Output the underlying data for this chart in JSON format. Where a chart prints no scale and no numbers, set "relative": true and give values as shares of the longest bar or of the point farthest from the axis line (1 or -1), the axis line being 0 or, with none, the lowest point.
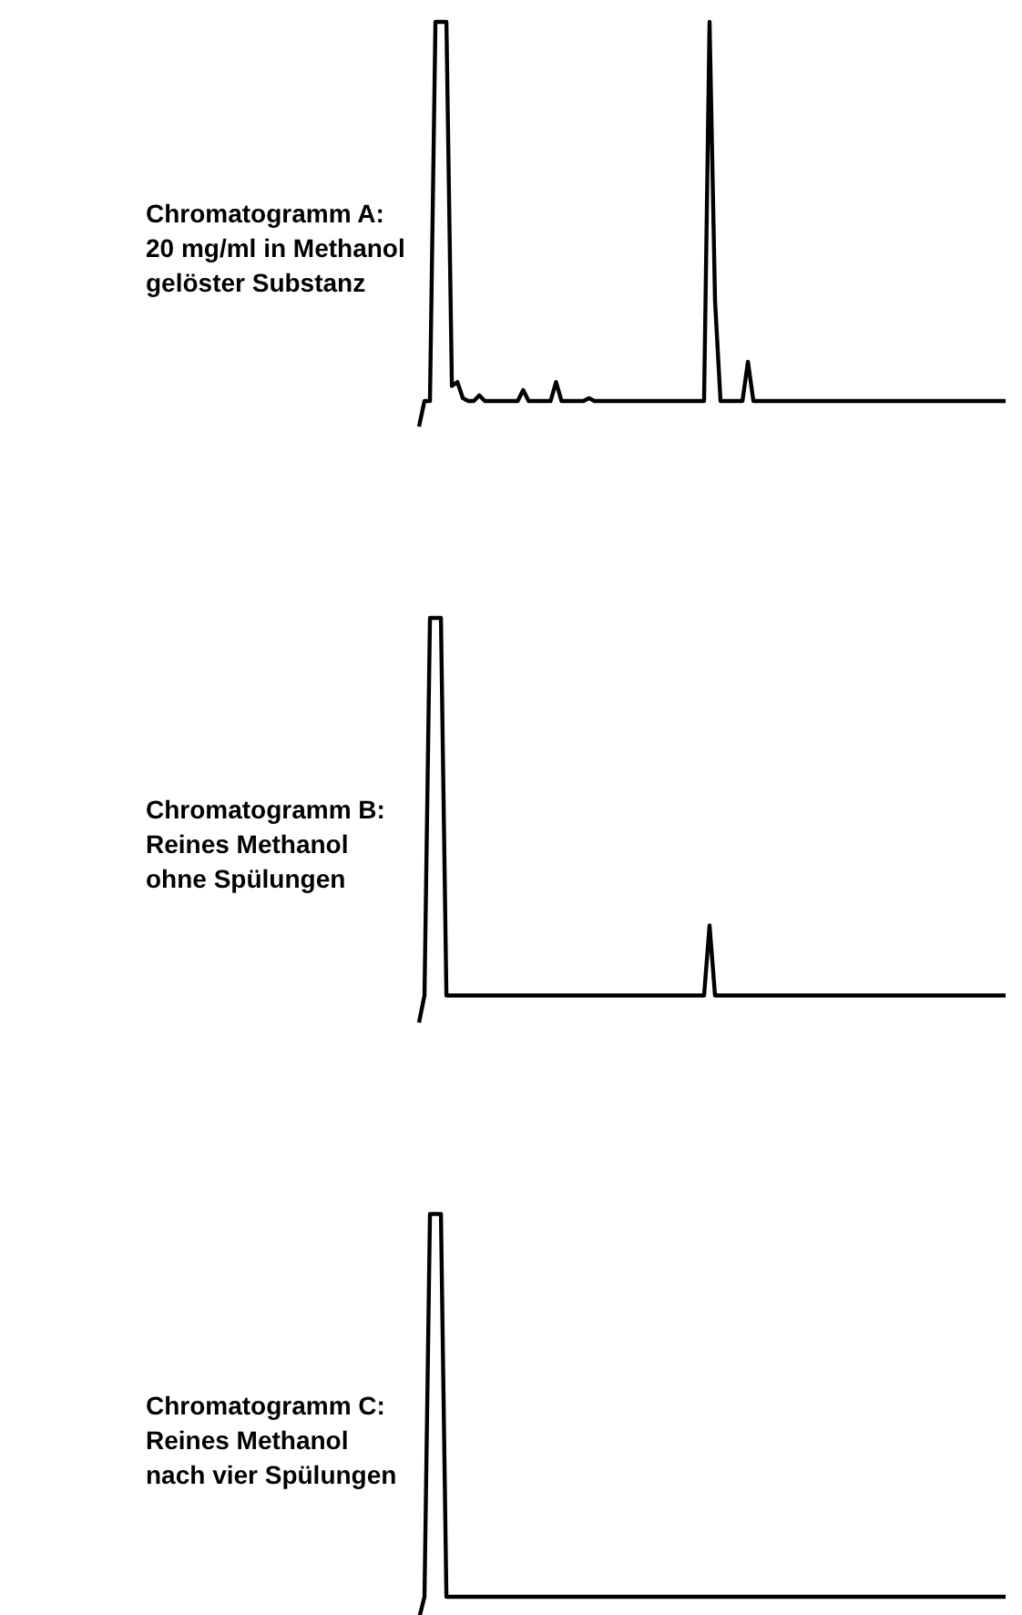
{
  "chart_data": [
    {
      "type": "line",
      "title": "Chromatogramm A:\n20 mg/ml in Methanol\ngelöster Substanz",
      "relative": true,
      "grid": false,
      "legend": false,
      "categories": [
        null,
        null,
        null,
        null,
        null,
        null,
        null,
        null,
        null,
        null,
        null,
        null,
        null,
        null,
        null,
        null,
        null,
        null,
        null,
        null,
        null,
        null,
        null,
        null,
        null,
        null,
        null,
        null,
        null,
        null,
        null,
        null,
        null,
        null,
        null,
        null,
        null,
        null,
        null,
        null,
        null,
        null,
        null,
        null,
        null,
        null,
        null,
        null,
        null,
        null,
        null,
        null,
        null,
        null,
        null,
        null,
        null,
        null,
        null,
        null,
        null,
        null,
        null,
        null,
        null,
        null,
        null,
        null,
        null,
        null,
        null,
        null,
        null,
        null,
        null,
        null,
        null,
        null,
        null,
        null,
        null,
        null,
        null,
        null,
        null,
        null,
        null,
        null,
        null,
        null,
        null,
        null,
        null,
        null,
        null,
        null,
        null,
        null,
        null,
        null,
        null,
        null,
        null,
        null,
        null,
        null,
        null,
        null
      ],
      "series": [
        {
          "color": "#000000",
          "values": [
            0,
            0.063,
            0.063,
            1,
            1,
            1,
            0.1,
            0.11,
            0.07,
            0.063,
            0.063,
            0.077,
            0.063,
            0.063,
            0.063,
            0.063,
            0.063,
            0.063,
            0.063,
            0.09,
            0.063,
            0.063,
            0.063,
            0.063,
            0.063,
            0.11,
            0.063,
            0.063,
            0.063,
            0.063,
            0.063,
            0.07,
            0.063,
            0.063,
            0.063,
            0.063,
            0.063,
            0.063,
            0.063,
            0.063,
            0.063,
            0.063,
            0.063,
            0.063,
            0.063,
            0.063,
            0.063,
            0.063,
            0.063,
            0.063,
            0.063,
            0.063,
            0.063,
            1,
            0.31,
            0.063,
            0.063,
            0.063,
            0.063,
            0.063,
            0.16,
            0.063,
            0.063,
            0.063,
            0.063,
            0.063,
            0.063,
            0.063,
            0.063,
            0.063,
            0.063,
            0.063,
            0.063,
            0.063,
            0.063,
            0.063,
            0.063,
            0.063,
            0.063,
            0.063,
            0.063,
            0.063,
            0.063,
            0.063,
            0.063,
            0.063,
            0.063,
            0.063,
            0.063,
            0.063,
            0.063,
            0.063,
            0.063,
            0.063,
            0.063,
            0.063,
            0.063,
            0.063,
            0.063,
            0.063,
            0.063,
            0.063,
            0.063,
            0.063,
            0.063,
            0.063,
            0.063,
            0.063
          ]
        }
      ]
    },
    {
      "type": "line",
      "title": "Chromatogramm B:\nReines Methanol\nohne Spülungen",
      "relative": true,
      "grid": false,
      "legend": false,
      "categories": [
        null,
        null,
        null,
        null,
        null,
        null,
        null,
        null,
        null,
        null,
        null,
        null,
        null,
        null,
        null,
        null,
        null,
        null,
        null,
        null,
        null,
        null,
        null,
        null,
        null,
        null,
        null,
        null,
        null,
        null,
        null,
        null,
        null,
        null,
        null,
        null,
        null,
        null,
        null,
        null,
        null,
        null,
        null,
        null,
        null,
        null,
        null,
        null,
        null,
        null,
        null,
        null,
        null,
        null,
        null,
        null,
        null,
        null,
        null,
        null,
        null,
        null,
        null,
        null,
        null,
        null,
        null,
        null,
        null,
        null,
        null,
        null,
        null,
        null,
        null,
        null,
        null,
        null,
        null,
        null,
        null,
        null,
        null,
        null,
        null,
        null,
        null,
        null,
        null,
        null,
        null,
        null,
        null,
        null,
        null,
        null,
        null,
        null,
        null,
        null,
        null,
        null,
        null,
        null,
        null,
        null,
        null,
        null
      ],
      "series": [
        {
          "color": "#000000",
          "values": [
            0,
            0.067,
            1,
            1,
            1,
            0.067,
            0.067,
            0.067,
            0.067,
            0.067,
            0.067,
            0.067,
            0.067,
            0.067,
            0.067,
            0.067,
            0.067,
            0.067,
            0.067,
            0.067,
            0.067,
            0.067,
            0.067,
            0.067,
            0.067,
            0.067,
            0.067,
            0.067,
            0.067,
            0.067,
            0.067,
            0.067,
            0.067,
            0.067,
            0.067,
            0.067,
            0.067,
            0.067,
            0.067,
            0.067,
            0.067,
            0.067,
            0.067,
            0.067,
            0.067,
            0.067,
            0.067,
            0.067,
            0.067,
            0.067,
            0.067,
            0.067,
            0.067,
            0.24,
            0.067,
            0.067,
            0.067,
            0.067,
            0.067,
            0.067,
            0.067,
            0.067,
            0.067,
            0.067,
            0.067,
            0.067,
            0.067,
            0.067,
            0.067,
            0.067,
            0.067,
            0.067,
            0.067,
            0.067,
            0.067,
            0.067,
            0.067,
            0.067,
            0.067,
            0.067,
            0.067,
            0.067,
            0.067,
            0.067,
            0.067,
            0.067,
            0.067,
            0.067,
            0.067,
            0.067,
            0.067,
            0.067,
            0.067,
            0.067,
            0.067,
            0.067,
            0.067,
            0.067,
            0.067,
            0.067,
            0.067,
            0.067,
            0.067,
            0.067,
            0.067,
            0.067,
            0.067,
            0.067
          ]
        }
      ]
    },
    {
      "type": "line",
      "title": "Chromatogramm C:\nReines Methanol\nnach vier Spülungen",
      "relative": true,
      "grid": false,
      "legend": false,
      "categories": [
        null,
        null,
        null,
        null,
        null,
        null,
        null,
        null,
        null,
        null,
        null,
        null,
        null,
        null,
        null,
        null,
        null,
        null,
        null,
        null,
        null,
        null,
        null,
        null,
        null,
        null,
        null,
        null,
        null,
        null,
        null,
        null,
        null,
        null,
        null,
        null,
        null,
        null,
        null,
        null,
        null,
        null,
        null,
        null,
        null,
        null,
        null,
        null,
        null,
        null,
        null,
        null,
        null,
        null,
        null,
        null,
        null,
        null,
        null,
        null,
        null,
        null,
        null,
        null,
        null,
        null,
        null,
        null,
        null,
        null,
        null,
        null,
        null,
        null,
        null,
        null,
        null,
        null,
        null,
        null,
        null,
        null,
        null,
        null,
        null,
        null,
        null,
        null,
        null,
        null,
        null,
        null,
        null,
        null,
        null,
        null,
        null,
        null,
        null,
        null,
        null,
        null,
        null,
        null,
        null,
        null,
        null,
        null
      ],
      "series": [
        {
          "color": "#000000",
          "values": [
            0,
            0.054,
            1,
            1,
            1,
            0.054,
            0.054,
            0.054,
            0.054,
            0.054,
            0.054,
            0.054,
            0.054,
            0.054,
            0.054,
            0.054,
            0.054,
            0.054,
            0.054,
            0.054,
            0.054,
            0.054,
            0.054,
            0.054,
            0.054,
            0.054,
            0.054,
            0.054,
            0.054,
            0.054,
            0.054,
            0.054,
            0.054,
            0.054,
            0.054,
            0.054,
            0.054,
            0.054,
            0.054,
            0.054,
            0.054,
            0.054,
            0.054,
            0.054,
            0.054,
            0.054,
            0.054,
            0.054,
            0.054,
            0.054,
            0.054,
            0.054,
            0.054,
            0.054,
            0.054,
            0.054,
            0.054,
            0.054,
            0.054,
            0.054,
            0.054,
            0.054,
            0.054,
            0.054,
            0.054,
            0.054,
            0.054,
            0.054,
            0.054,
            0.054,
            0.054,
            0.054,
            0.054,
            0.054,
            0.054,
            0.054,
            0.054,
            0.054,
            0.054,
            0.054,
            0.054,
            0.054,
            0.054,
            0.054,
            0.054,
            0.054,
            0.054,
            0.054,
            0.054,
            0.054,
            0.054,
            0.054,
            0.054,
            0.054,
            0.054,
            0.054,
            0.054,
            0.054,
            0.054,
            0.054,
            0.054,
            0.054,
            0.054,
            0.054,
            0.054,
            0.054,
            0.054,
            0.054
          ]
        }
      ]
    }
  ]
}
